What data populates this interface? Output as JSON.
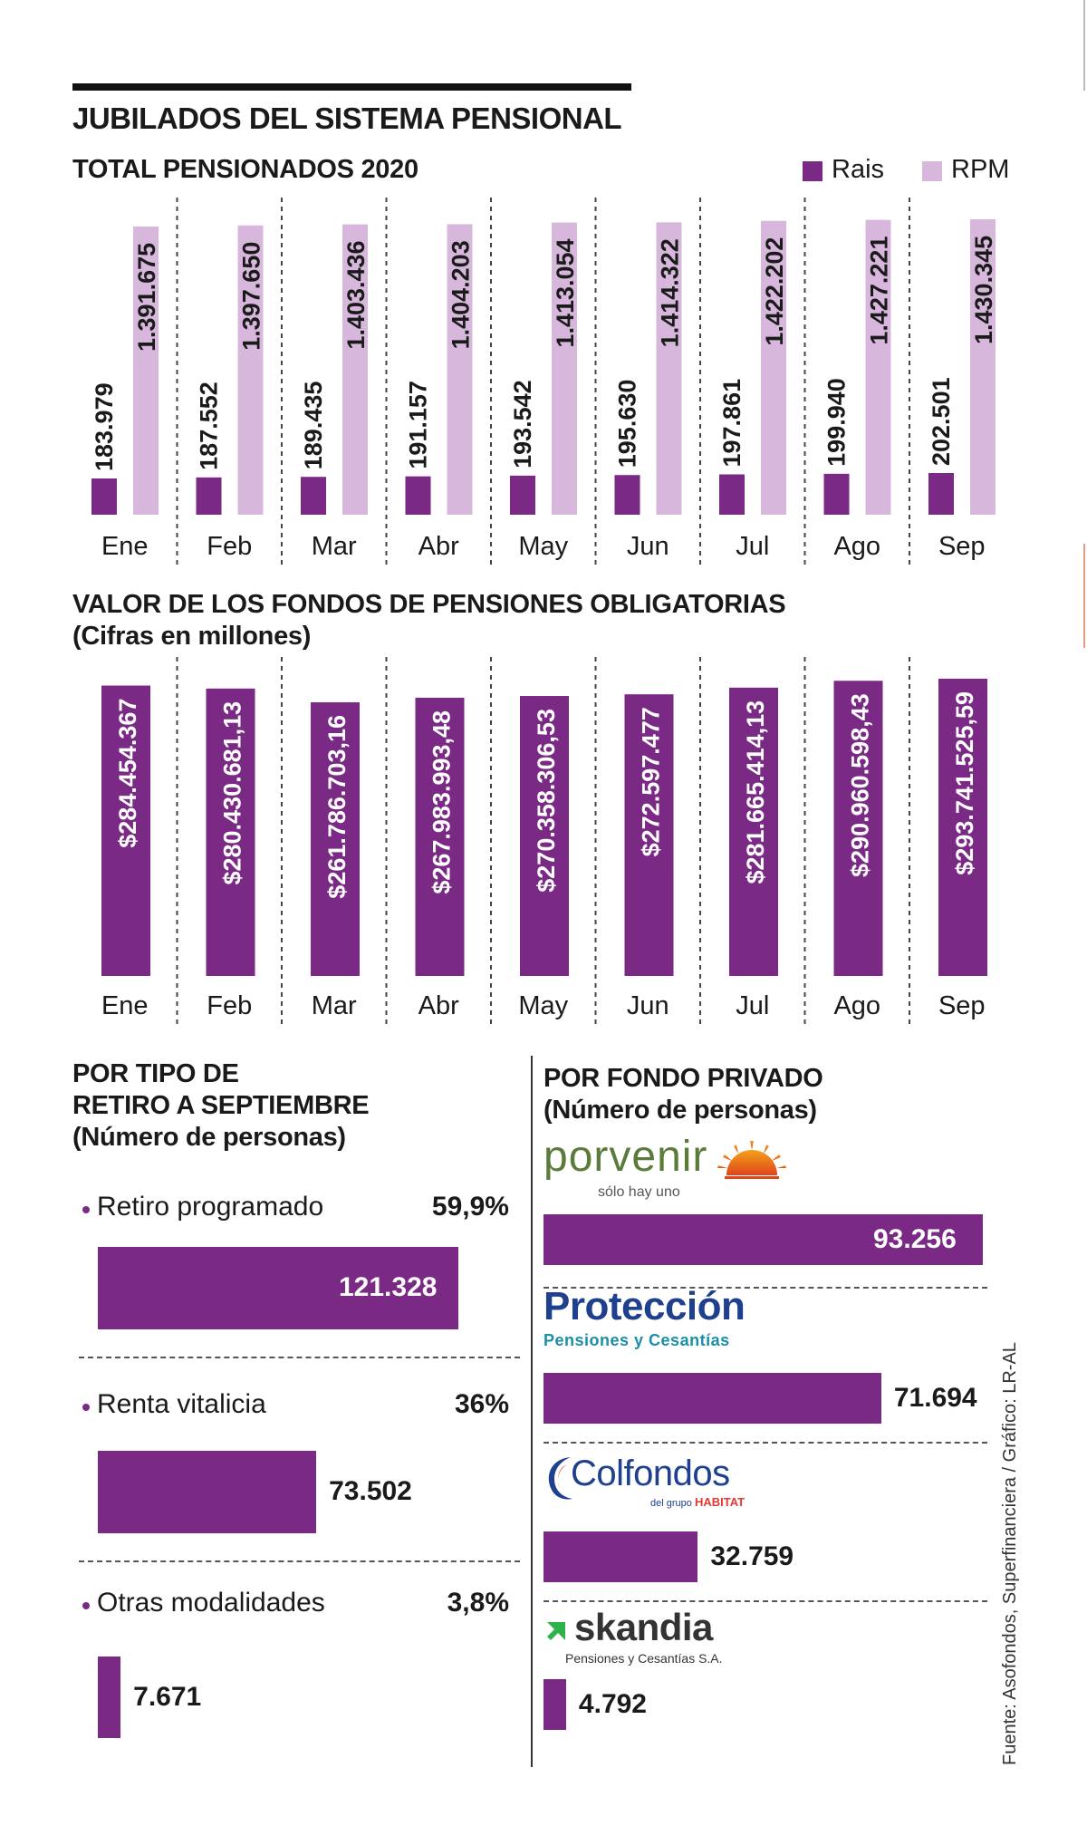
{
  "title": "JUBILADOS DEL SISTEMA PENSIONAL",
  "months": [
    "Ene",
    "Feb",
    "Mar",
    "Abr",
    "May",
    "Jun",
    "Jul",
    "Ago",
    "Sep"
  ],
  "pensioners": {
    "subtitle": "TOTAL PENSIONADOS 2020",
    "legend": [
      {
        "label": "Rais",
        "color": "#7a2a85"
      },
      {
        "label": "RPM",
        "color": "#d7b8dc"
      }
    ]
  },
  "funds": {
    "subtitle_line1": "VALOR DE LOS FONDOS DE PENSIONES OBLIGATORIAS",
    "subtitle_line2": "(Cifras en millones)"
  },
  "retirement": {
    "title_line1": "POR TIPO DE",
    "title_line2": "RETIRO A SEPTIEMBRE",
    "title_line3": "(Número de personas)",
    "items": [
      {
        "label": "Retiro programado",
        "percent": "59,9%",
        "value": "121.328"
      },
      {
        "label": "Renta vitalicia",
        "percent": "36%",
        "value": "73.502"
      },
      {
        "label": "Otras modalidades",
        "percent": "3,8%",
        "value": "7.671"
      }
    ]
  },
  "private_funds": {
    "title_line1": "POR FONDO PRIVADO",
    "title_line2": "(Número de personas)",
    "porvenir": {
      "name": "porvenir",
      "tagline": "sólo hay uno",
      "value": "93.256"
    },
    "proteccion": {
      "name": "Protección",
      "tagline": "Pensiones y Cesantías",
      "value": "71.694"
    },
    "colfondos": {
      "name": "Colfondos",
      "tagline_prefix": "del grupo",
      "tagline_brand": "HABITAT",
      "value": "32.759"
    },
    "skandia": {
      "name": "skandia",
      "tagline": "Pensiones y Cesantías S.A.",
      "value": "4.792"
    }
  },
  "source": "Fuente: Asofondos, Superfinanciera / Gráfico: LR-AL",
  "colors": {
    "primary": "#7a2a85",
    "secondary": "#d7b8dc",
    "porvenir_green": "#5b7b3a",
    "proteccion_blue": "#1f3f8f",
    "proteccion_teal": "#1b8fa8",
    "skandia_green": "#2db34a"
  },
  "chart_data": [
    {
      "type": "bar",
      "title": "TOTAL PENSIONADOS 2020",
      "categories": [
        "Ene",
        "Feb",
        "Mar",
        "Abr",
        "May",
        "Jun",
        "Jul",
        "Ago",
        "Sep"
      ],
      "series": [
        {
          "name": "Rais",
          "values": [
            183979,
            187552,
            189435,
            191157,
            193542,
            195630,
            197861,
            199940,
            202501
          ],
          "labels": [
            "183.979",
            "187.552",
            "189.435",
            "191.157",
            "193.542",
            "195.630",
            "197.861",
            "199.940",
            "202.501"
          ]
        },
        {
          "name": "RPM",
          "values": [
            1391675,
            1397650,
            1403436,
            1404203,
            1413054,
            1414322,
            1422202,
            1427221,
            1430345
          ],
          "labels": [
            "1.391.675",
            "1.397.650",
            "1.403.436",
            "1.404.203",
            "1.413.054",
            "1.414.322",
            "1.422.202",
            "1.427.221",
            "1.430.345"
          ]
        }
      ]
    },
    {
      "type": "bar",
      "title": "VALOR DE LOS FONDOS DE PENSIONES OBLIGATORIAS (Cifras en millones)",
      "categories": [
        "Ene",
        "Feb",
        "Mar",
        "Abr",
        "May",
        "Jun",
        "Jul",
        "Ago",
        "Sep"
      ],
      "values": [
        284454367,
        280430681.13,
        261786703.16,
        267983993.48,
        270358306.53,
        272597477,
        281665414.13,
        290960598.43,
        293741525.59
      ],
      "labels": [
        "$284.454.367",
        "$280.430.681,13",
        "$261.786.703,16",
        "$267.983.993,48",
        "$270.358.306,53",
        "$272.597.477",
        "$281.665.414,13",
        "$290.960.598,43",
        "$293.741.525,59"
      ]
    },
    {
      "type": "bar",
      "title": "POR TIPO DE RETIRO A SEPTIEMBRE (Número de personas)",
      "categories": [
        "Retiro programado",
        "Renta vitalicia",
        "Otras modalidades"
      ],
      "values": [
        121328,
        73502,
        7671
      ],
      "percent": [
        59.9,
        36,
        3.8
      ]
    },
    {
      "type": "bar",
      "title": "POR FONDO PRIVADO (Número de personas)",
      "categories": [
        "Porvenir",
        "Protección",
        "Colfondos",
        "Skandia"
      ],
      "values": [
        93256,
        71694,
        32759,
        4792
      ]
    }
  ]
}
